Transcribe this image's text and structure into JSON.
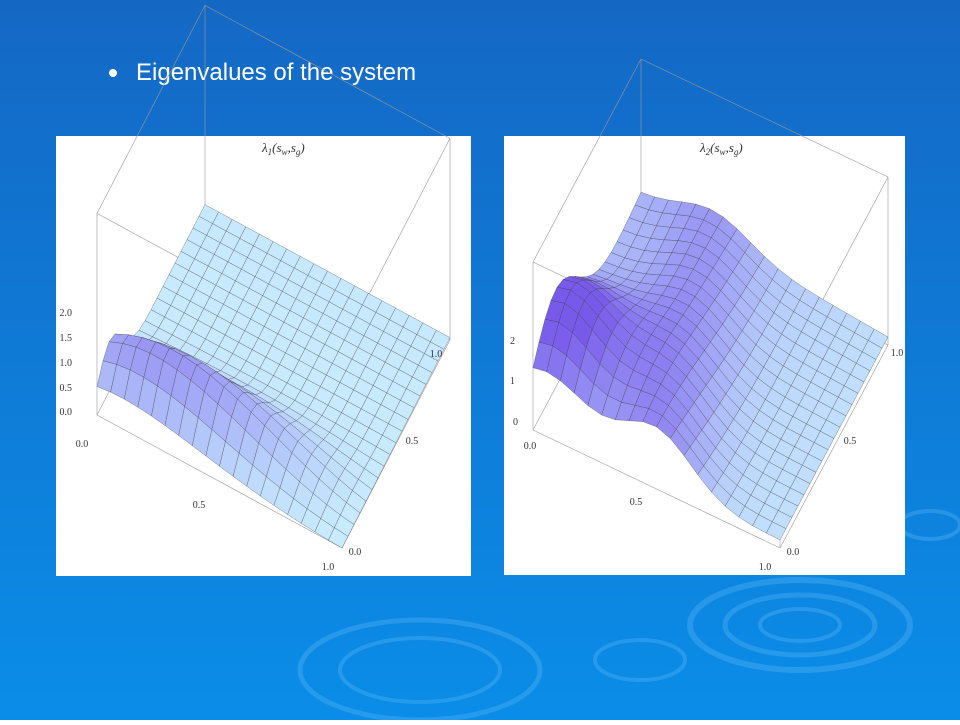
{
  "slide": {
    "bullet": "Eigenvalues of the system",
    "plots": [
      {
        "title": {
          "base": "λ",
          "sub": "1",
          "arg1": "s",
          "arg1_sub": "w",
          "arg2": "s",
          "arg2_sub": "g"
        },
        "z_ticks": [
          "2.0",
          "1.5",
          "1.0",
          "0.5",
          "0.0"
        ],
        "x_ticks": [
          "0.0",
          "0.5",
          "1.0"
        ],
        "y_ticks": [
          "0.0",
          "0.5",
          "1.0"
        ]
      },
      {
        "title": {
          "base": "λ",
          "sub": "2",
          "arg1": "s",
          "arg1_sub": "w",
          "arg2": "s",
          "arg2_sub": "g"
        },
        "z_ticks": [
          "2",
          "1",
          "0"
        ],
        "x_ticks": [
          "0.0",
          "0.5",
          "1.0"
        ],
        "y_ticks": [
          "0.0",
          "0.5",
          "1.0"
        ]
      }
    ]
  }
}
